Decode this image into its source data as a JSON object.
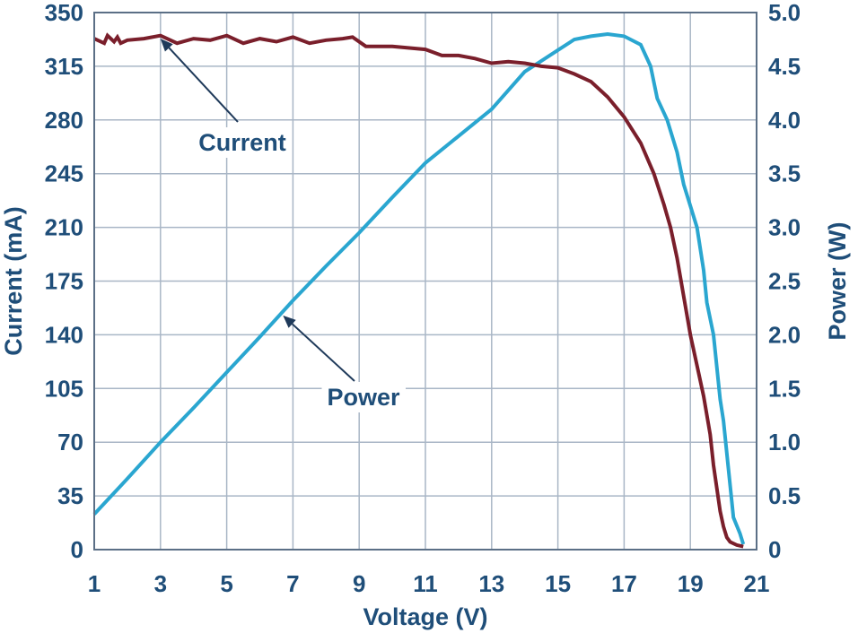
{
  "chart_data": {
    "type": "line",
    "title": "",
    "xlabel": "Voltage (V)",
    "ylabel_left": "Current (mA)",
    "ylabel_right": "Power (W)",
    "xlim": [
      1,
      21
    ],
    "ylim_left": [
      0,
      350
    ],
    "ylim_right": [
      0,
      5.0
    ],
    "x_ticks": [
      "1",
      "3",
      "5",
      "7",
      "9",
      "11",
      "13",
      "15",
      "17",
      "19",
      "21"
    ],
    "y_left_ticks": [
      "0",
      "35",
      "70",
      "105",
      "140",
      "175",
      "210",
      "245",
      "280",
      "315",
      "350"
    ],
    "y_right_ticks": [
      "0",
      "0.5",
      "1.0",
      "1.5",
      "2.0",
      "2.5",
      "3.0",
      "3.5",
      "4.0",
      "4.5",
      "5.0"
    ],
    "grid": true,
    "colors": {
      "current": "#7a1f2b",
      "power": "#2aa6d0",
      "text": "#1f4e79"
    },
    "series": [
      {
        "name": "Current",
        "axis": "left",
        "x": [
          1.0,
          1.3,
          1.4,
          1.6,
          1.7,
          1.8,
          2.0,
          2.5,
          3.0,
          3.5,
          4.0,
          4.5,
          5.0,
          5.5,
          6.0,
          6.5,
          7.0,
          7.5,
          8.0,
          8.5,
          8.8,
          9.2,
          10.0,
          11.0,
          11.5,
          12.0,
          12.5,
          13.0,
          13.5,
          14.0,
          14.5,
          15.0,
          15.5,
          16.0,
          16.5,
          17.0,
          17.5,
          17.9,
          18.2,
          18.4,
          18.6,
          18.8,
          19.0,
          19.2,
          19.4,
          19.6,
          19.7,
          19.8,
          19.9,
          20.0,
          20.1,
          20.2,
          20.4,
          20.6
        ],
        "y": [
          333,
          330,
          335,
          331,
          334,
          330,
          332,
          333,
          335,
          330,
          333,
          332,
          335,
          330,
          333,
          331,
          334,
          330,
          332,
          333,
          334,
          328,
          328,
          326,
          322,
          322,
          320,
          317,
          318,
          317,
          315,
          314,
          310,
          305,
          295,
          282,
          265,
          245,
          225,
          210,
          190,
          165,
          140,
          120,
          100,
          75,
          55,
          40,
          25,
          15,
          8,
          5,
          3,
          2
        ]
      },
      {
        "name": "Power",
        "axis": "right",
        "x": [
          1.0,
          2.0,
          3.0,
          4.0,
          5.0,
          6.0,
          7.0,
          8.0,
          9.0,
          10.0,
          11.0,
          12.0,
          13.0,
          14.0,
          14.5,
          15.0,
          15.5,
          16.0,
          16.5,
          17.0,
          17.5,
          17.8,
          18.0,
          18.3,
          18.6,
          18.8,
          19.0,
          19.2,
          19.4,
          19.5,
          19.7,
          19.8,
          19.9,
          20.0,
          20.1,
          20.2,
          20.3,
          20.5,
          20.6
        ],
        "y": [
          0.33,
          0.66,
          1.0,
          1.32,
          1.65,
          1.98,
          2.32,
          2.64,
          2.95,
          3.28,
          3.6,
          3.85,
          4.1,
          4.45,
          4.55,
          4.65,
          4.75,
          4.78,
          4.8,
          4.78,
          4.7,
          4.5,
          4.2,
          4.0,
          3.7,
          3.4,
          3.2,
          3.0,
          2.6,
          2.3,
          2.0,
          1.7,
          1.4,
          1.2,
          0.9,
          0.6,
          0.3,
          0.15,
          0.05
        ]
      }
    ],
    "annotations": [
      {
        "text": "Current",
        "target_series": "Current",
        "target_x": 3.0,
        "target_y": 333
      },
      {
        "text": "Power",
        "target_series": "Power",
        "target_x": 6.7,
        "target_y": 2.18
      }
    ]
  }
}
